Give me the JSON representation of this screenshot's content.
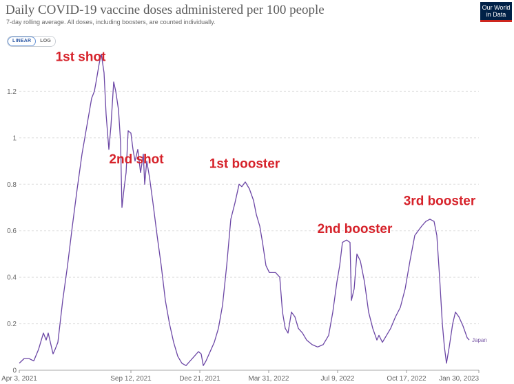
{
  "header": {
    "title": "Daily COVID-19 vaccine doses administered per 100 people",
    "subtitle": "7-day rolling average. All doses, including boosters, are counted individually."
  },
  "logo": {
    "line1": "Our World",
    "line2": "in Data"
  },
  "scale_toggle": {
    "linear_label": "LINEAR",
    "log_label": "LOG",
    "selected": "LINEAR"
  },
  "colors": {
    "line": "#6b46a5",
    "annotation": "#d6222a",
    "grid": "#dddddd"
  },
  "chart_data": {
    "type": "line",
    "title": "Daily COVID-19 vaccine doses administered per 100 people",
    "xlabel": "",
    "ylabel": "",
    "x_range": [
      "2021-04-03",
      "2023-01-30"
    ],
    "ylim": [
      0,
      1.4
    ],
    "y_ticks": [
      0,
      0.2,
      0.4,
      0.6,
      0.8,
      1,
      1.2
    ],
    "y_tick_labels": [
      "0",
      "0.2",
      "0.4",
      "0.6",
      "0.8",
      "1",
      "1.2"
    ],
    "x_ticks": [
      "2021-04-03",
      "2021-09-12",
      "2021-12-21",
      "2022-03-31",
      "2022-07-09",
      "2022-10-17",
      "2023-01-30"
    ],
    "x_tick_labels": [
      "Apr 3, 2021",
      "Sep 12, 2021",
      "Dec 21, 2021",
      "Mar 31, 2022",
      "Jul 9, 2022",
      "Oct 17, 2022",
      "Jan 30, 2023"
    ],
    "grid": "horizontal dashed",
    "series": [
      {
        "name": "Japan",
        "points": [
          [
            "2021-04-03",
            0.03
          ],
          [
            "2021-04-10",
            0.05
          ],
          [
            "2021-04-17",
            0.05
          ],
          [
            "2021-04-24",
            0.04
          ],
          [
            "2021-05-01",
            0.09
          ],
          [
            "2021-05-08",
            0.16
          ],
          [
            "2021-05-12",
            0.13
          ],
          [
            "2021-05-15",
            0.16
          ],
          [
            "2021-05-22",
            0.07
          ],
          [
            "2021-05-25",
            0.09
          ],
          [
            "2021-05-29",
            0.12
          ],
          [
            "2021-06-05",
            0.3
          ],
          [
            "2021-06-12",
            0.45
          ],
          [
            "2021-06-19",
            0.62
          ],
          [
            "2021-06-26",
            0.78
          ],
          [
            "2021-07-03",
            0.93
          ],
          [
            "2021-07-10",
            1.05
          ],
          [
            "2021-07-17",
            1.17
          ],
          [
            "2021-07-21",
            1.2
          ],
          [
            "2021-07-24",
            1.25
          ],
          [
            "2021-07-28",
            1.32
          ],
          [
            "2021-07-31",
            1.36
          ],
          [
            "2021-08-04",
            1.28
          ],
          [
            "2021-08-07",
            1.1
          ],
          [
            "2021-08-11",
            0.95
          ],
          [
            "2021-08-14",
            1.05
          ],
          [
            "2021-08-18",
            1.24
          ],
          [
            "2021-08-21",
            1.2
          ],
          [
            "2021-08-25",
            1.12
          ],
          [
            "2021-08-28",
            0.98
          ],
          [
            "2021-08-30",
            0.7
          ],
          [
            "2021-09-02",
            0.78
          ],
          [
            "2021-09-05",
            0.85
          ],
          [
            "2021-09-08",
            1.03
          ],
          [
            "2021-09-12",
            1.02
          ],
          [
            "2021-09-15",
            0.95
          ],
          [
            "2021-09-18",
            0.9
          ],
          [
            "2021-09-22",
            0.95
          ],
          [
            "2021-09-26",
            0.85
          ],
          [
            "2021-09-30",
            0.93
          ],
          [
            "2021-10-02",
            0.8
          ],
          [
            "2021-10-05",
            0.9
          ],
          [
            "2021-10-09",
            0.83
          ],
          [
            "2021-10-14",
            0.72
          ],
          [
            "2021-10-20",
            0.58
          ],
          [
            "2021-10-26",
            0.45
          ],
          [
            "2021-11-01",
            0.3
          ],
          [
            "2021-11-07",
            0.2
          ],
          [
            "2021-11-13",
            0.12
          ],
          [
            "2021-11-19",
            0.06
          ],
          [
            "2021-11-25",
            0.03
          ],
          [
            "2021-12-01",
            0.02
          ],
          [
            "2021-12-07",
            0.04
          ],
          [
            "2021-12-13",
            0.06
          ],
          [
            "2021-12-19",
            0.08
          ],
          [
            "2021-12-23",
            0.07
          ],
          [
            "2021-12-26",
            0.02
          ],
          [
            "2021-12-30",
            0.04
          ],
          [
            "2022-01-05",
            0.08
          ],
          [
            "2022-01-11",
            0.12
          ],
          [
            "2022-01-17",
            0.18
          ],
          [
            "2022-01-23",
            0.28
          ],
          [
            "2022-01-29",
            0.45
          ],
          [
            "2022-02-04",
            0.65
          ],
          [
            "2022-02-10",
            0.72
          ],
          [
            "2022-02-16",
            0.8
          ],
          [
            "2022-02-20",
            0.79
          ],
          [
            "2022-02-25",
            0.81
          ],
          [
            "2022-03-03",
            0.78
          ],
          [
            "2022-03-09",
            0.73
          ],
          [
            "2022-03-13",
            0.67
          ],
          [
            "2022-03-18",
            0.62
          ],
          [
            "2022-03-22",
            0.55
          ],
          [
            "2022-03-27",
            0.45
          ],
          [
            "2022-04-01",
            0.42
          ],
          [
            "2022-04-10",
            0.42
          ],
          [
            "2022-04-16",
            0.4
          ],
          [
            "2022-04-20",
            0.25
          ],
          [
            "2022-04-24",
            0.18
          ],
          [
            "2022-04-28",
            0.16
          ],
          [
            "2022-05-03",
            0.25
          ],
          [
            "2022-05-08",
            0.23
          ],
          [
            "2022-05-13",
            0.18
          ],
          [
            "2022-05-19",
            0.16
          ],
          [
            "2022-05-25",
            0.13
          ],
          [
            "2022-06-02",
            0.11
          ],
          [
            "2022-06-10",
            0.1
          ],
          [
            "2022-06-18",
            0.11
          ],
          [
            "2022-06-26",
            0.15
          ],
          [
            "2022-07-02",
            0.25
          ],
          [
            "2022-07-08",
            0.38
          ],
          [
            "2022-07-12",
            0.45
          ],
          [
            "2022-07-16",
            0.55
          ],
          [
            "2022-07-22",
            0.56
          ],
          [
            "2022-07-27",
            0.55
          ],
          [
            "2022-07-29",
            0.3
          ],
          [
            "2022-08-02",
            0.35
          ],
          [
            "2022-08-06",
            0.5
          ],
          [
            "2022-08-11",
            0.47
          ],
          [
            "2022-08-17",
            0.38
          ],
          [
            "2022-08-23",
            0.25
          ],
          [
            "2022-08-29",
            0.18
          ],
          [
            "2022-09-04",
            0.13
          ],
          [
            "2022-09-07",
            0.15
          ],
          [
            "2022-09-12",
            0.12
          ],
          [
            "2022-09-18",
            0.15
          ],
          [
            "2022-09-24",
            0.18
          ],
          [
            "2022-10-01",
            0.23
          ],
          [
            "2022-10-08",
            0.27
          ],
          [
            "2022-10-15",
            0.35
          ],
          [
            "2022-10-22",
            0.47
          ],
          [
            "2022-10-29",
            0.58
          ],
          [
            "2022-11-03",
            0.6
          ],
          [
            "2022-11-08",
            0.62
          ],
          [
            "2022-11-14",
            0.64
          ],
          [
            "2022-11-20",
            0.65
          ],
          [
            "2022-11-26",
            0.64
          ],
          [
            "2022-11-30",
            0.58
          ],
          [
            "2022-12-04",
            0.4
          ],
          [
            "2022-12-08",
            0.2
          ],
          [
            "2022-12-11",
            0.1
          ],
          [
            "2022-12-14",
            0.03
          ],
          [
            "2022-12-18",
            0.1
          ],
          [
            "2022-12-23",
            0.2
          ],
          [
            "2022-12-27",
            0.25
          ],
          [
            "2023-01-01",
            0.23
          ],
          [
            "2023-01-07",
            0.19
          ],
          [
            "2023-01-13",
            0.14
          ],
          [
            "2023-01-16",
            0.13
          ]
        ]
      }
    ],
    "annotations": [
      {
        "text": "1st shot",
        "x": "2021-07-01",
        "y": 1.33
      },
      {
        "text": "2nd shot",
        "x": "2021-09-20",
        "y": 0.89
      },
      {
        "text": "1st booster",
        "x": "2022-02-24",
        "y": 0.87
      },
      {
        "text": "2nd booster",
        "x": "2022-08-03",
        "y": 0.59
      },
      {
        "text": "3rd booster",
        "x": "2022-12-04",
        "y": 0.71
      }
    ]
  }
}
